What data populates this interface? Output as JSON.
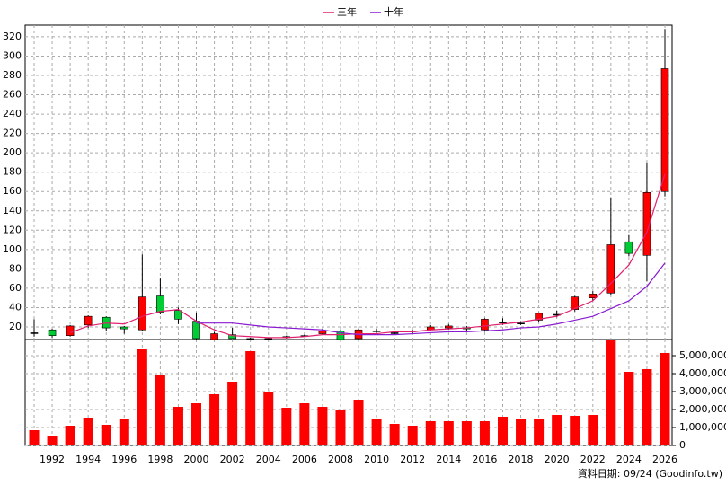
{
  "chart_data": [
    {
      "type": "candlestick",
      "open": [
        14,
        17,
        11,
        22,
        30,
        20,
        17,
        52,
        37,
        26,
        7,
        12,
        8,
        8,
        9,
        11,
        13,
        16,
        8,
        16,
        14,
        15,
        17,
        19,
        19,
        17,
        25,
        24,
        27,
        33,
        38,
        50,
        55,
        108,
        94,
        160
      ],
      "high": [
        28,
        18,
        22,
        32,
        31,
        21,
        95,
        70,
        40,
        35,
        15,
        19,
        9,
        9,
        11,
        12,
        18,
        17,
        18,
        18,
        16,
        17,
        22,
        23,
        21,
        29,
        29,
        26,
        35,
        37,
        52,
        57,
        154,
        115,
        190,
        328
      ],
      "low": [
        10,
        9,
        10,
        19,
        16,
        13,
        16,
        33,
        23,
        7,
        6,
        8,
        7,
        7,
        8,
        10,
        12,
        6,
        7,
        14,
        12,
        13,
        16,
        17,
        15,
        15,
        22,
        22,
        25,
        30,
        36,
        47,
        53,
        93,
        67,
        155
      ],
      "close": [
        14,
        11,
        21,
        31,
        19,
        18,
        51,
        35,
        28,
        8,
        13,
        8,
        8,
        8,
        10,
        11,
        16,
        7,
        17,
        16,
        14,
        16,
        20,
        21,
        18,
        28,
        25,
        24,
        34,
        33,
        51,
        54,
        105,
        96,
        159,
        287
      ],
      "up_color": "#ff0000",
      "down_color": "#00cc33",
      "flat_color": "#000000",
      "series": [
        {
          "name": "三年",
          "color": "#e0206f",
          "values": [
            null,
            null,
            14,
            21,
            24,
            23,
            31,
            36,
            38,
            26,
            17,
            11,
            10,
            9,
            9,
            10,
            12,
            12,
            13,
            13,
            15,
            15,
            17,
            18,
            19,
            21,
            23,
            25,
            28,
            31,
            39,
            47,
            65,
            84,
            118,
            178
          ]
        },
        {
          "name": "十年",
          "color": "#8a1ad0",
          "values": [
            null,
            null,
            null,
            null,
            null,
            null,
            null,
            null,
            null,
            24,
            24,
            24,
            22,
            20,
            19,
            18,
            17,
            14,
            12,
            12,
            12,
            13,
            14,
            15,
            15,
            16,
            17,
            19,
            20,
            23,
            27,
            31,
            39,
            47,
            62,
            86
          ]
        }
      ],
      "ylim": [
        7,
        332
      ],
      "yticks": [
        20,
        40,
        60,
        80,
        100,
        120,
        140,
        160,
        180,
        200,
        220,
        240,
        260,
        280,
        300,
        320
      ],
      "grid": true,
      "legend": "top"
    },
    {
      "type": "bar",
      "categories": [
        null,
        "1992",
        null,
        "1994",
        null,
        "1996",
        null,
        "1998",
        null,
        "2000",
        null,
        "2002",
        null,
        "2004",
        null,
        "2006",
        null,
        "2008",
        null,
        "2010",
        null,
        "2012",
        null,
        "2014",
        null,
        "2016",
        null,
        "2018",
        null,
        "2020",
        null,
        "2022",
        null,
        "2024",
        null,
        "2026"
      ],
      "values": [
        850000,
        550000,
        1100000,
        1550000,
        1150000,
        1500000,
        5350000,
        3900000,
        2150000,
        2350000,
        2850000,
        3550000,
        5250000,
        3000000,
        2100000,
        2350000,
        2150000,
        2000000,
        2550000,
        1450000,
        1200000,
        1100000,
        1350000,
        1350000,
        1350000,
        1350000,
        1600000,
        1450000,
        1500000,
        1700000,
        1650000,
        1700000,
        5850000,
        4100000,
        4250000,
        5150000
      ],
      "color": "#ff0000",
      "ylim": [
        0,
        5900000
      ],
      "yticks": [
        0,
        {
          "value": 1000000,
          "label": "1,000,000"
        },
        {
          "value": 2000000,
          "label": "2,000,000"
        },
        {
          "value": 3000000,
          "label": "3,000,000"
        },
        {
          "value": 4000000,
          "label": "4,000,000"
        },
        {
          "value": 5000000,
          "label": "5,000,000"
        }
      ],
      "grid": true
    }
  ],
  "footnote": "資料日期: 09/24  (Goodinfo.tw)"
}
